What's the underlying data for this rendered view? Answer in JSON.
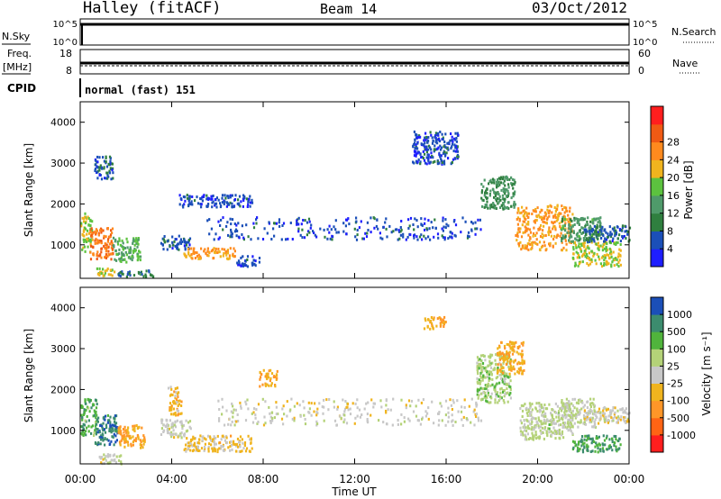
{
  "header": {
    "station": "Halley (fitACF)",
    "beam": "Beam 14",
    "date": "03/Oct/2012"
  },
  "top_panels": {
    "nsky_label": "N.Sky",
    "nsky_ticks": [
      "10^5",
      "10^0"
    ],
    "nsearch_label": "N.Search",
    "nsearch_ticks": [
      "10^5",
      "10^0"
    ],
    "freq_label": "Freq.",
    "freq_unit": "[MHz]",
    "freq_ticks": [
      "18",
      "8"
    ],
    "nave_label": "Nave",
    "nave_ticks": [
      "60",
      "0"
    ],
    "cpid_label": "CPID",
    "cpid_value": "normal (fast) 151"
  },
  "x_axis": {
    "title": "Time UT",
    "ticks": [
      "00:00",
      "04:00",
      "08:00",
      "12:00",
      "16:00",
      "20:00",
      "00:00"
    ]
  },
  "colors": {
    "power": [
      "#1e1eff",
      "#1b4fb8",
      "#2f7f3f",
      "#4f9a6a",
      "#5cc23f",
      "#f0b41e",
      "#ff8a1e",
      "#f05a14",
      "#ff1e1e"
    ],
    "velocity": [
      "#ff1e1e",
      "#ff6414",
      "#ff9628",
      "#f0b41e",
      "#c8c8c8",
      "#b4d278",
      "#50b43c",
      "#3c8c6e",
      "#1b4fb8"
    ]
  },
  "chart_data": [
    {
      "type": "heatmap",
      "name": "power",
      "xlabel": "",
      "ylabel": "Slant Range [km]",
      "xlim": [
        0,
        24
      ],
      "ylim": [
        180,
        4500
      ],
      "yticks": [
        "1000",
        "2000",
        "3000",
        "4000"
      ],
      "colorbar": {
        "label": "Power [dB]",
        "ticks": [
          "4",
          "8",
          "12",
          "16",
          "20",
          "24",
          "28"
        ],
        "range": [
          0,
          32
        ]
      },
      "regions": [
        {
          "t0": 0.0,
          "t1": 0.5,
          "r0": 850,
          "r1": 1800,
          "v": 17
        },
        {
          "t0": 0.4,
          "t1": 1.4,
          "r0": 650,
          "r1": 1450,
          "v": 25
        },
        {
          "t0": 1.4,
          "t1": 2.6,
          "r0": 600,
          "r1": 1200,
          "v": 14
        },
        {
          "t0": 0.7,
          "t1": 1.6,
          "r0": 250,
          "r1": 450,
          "v": 18
        },
        {
          "t0": 1.6,
          "t1": 3.2,
          "r0": 250,
          "r1": 400,
          "v": 8
        },
        {
          "t0": 3.5,
          "t1": 4.8,
          "r0": 900,
          "r1": 1250,
          "v": 6
        },
        {
          "t0": 4.5,
          "t1": 6.8,
          "r0": 680,
          "r1": 950,
          "v": 22
        },
        {
          "t0": 6.8,
          "t1": 7.8,
          "r0": 500,
          "r1": 750,
          "v": 5
        },
        {
          "t0": 4.3,
          "t1": 7.5,
          "r0": 1950,
          "r1": 2250,
          "v": 5
        },
        {
          "t0": 5.5,
          "t1": 17.5,
          "r0": 1150,
          "r1": 1700,
          "v": 5
        },
        {
          "t0": 17.5,
          "t1": 19.0,
          "r0": 1900,
          "r1": 2700,
          "v": 11
        },
        {
          "t0": 19.0,
          "t1": 21.5,
          "r0": 900,
          "r1": 2000,
          "v": 22
        },
        {
          "t0": 21.5,
          "t1": 23.6,
          "r0": 500,
          "r1": 1100,
          "v": 18
        },
        {
          "t0": 21.0,
          "t1": 22.8,
          "r0": 1100,
          "r1": 1700,
          "v": 12
        },
        {
          "t0": 22.0,
          "t1": 24.0,
          "r0": 1100,
          "r1": 1500,
          "v": 6
        },
        {
          "t0": 0.6,
          "t1": 1.4,
          "r0": 2600,
          "r1": 3200,
          "v": 6
        },
        {
          "t0": 14.5,
          "t1": 16.5,
          "r0": 3000,
          "r1": 3800,
          "v": 5
        }
      ]
    },
    {
      "type": "heatmap",
      "name": "velocity",
      "xlabel": "Time UT",
      "ylabel": "Slant Range [km]",
      "xlim": [
        0,
        24
      ],
      "ylim": [
        180,
        4500
      ],
      "yticks": [
        "1000",
        "2000",
        "3000",
        "4000"
      ],
      "colorbar": {
        "label": "Velocity [m s⁻¹]",
        "ticks": [
          "-1000",
          "-500",
          "-100",
          "-25",
          "25",
          "100",
          "500",
          "1000"
        ],
        "range": [
          -1250,
          1250
        ]
      },
      "regions": [
        {
          "t0": 0.0,
          "t1": 0.7,
          "r0": 900,
          "r1": 1800,
          "v": 600
        },
        {
          "t0": 0.6,
          "t1": 1.6,
          "r0": 650,
          "r1": 1400,
          "v": 900
        },
        {
          "t0": 1.6,
          "t1": 2.8,
          "r0": 600,
          "r1": 1150,
          "v": -400
        },
        {
          "t0": 0.8,
          "t1": 1.8,
          "r0": 200,
          "r1": 450,
          "v": 80
        },
        {
          "t0": 3.5,
          "t1": 4.8,
          "r0": 850,
          "r1": 1300,
          "v": 60
        },
        {
          "t0": 4.5,
          "t1": 7.5,
          "r0": 500,
          "r1": 900,
          "v": -200
        },
        {
          "t0": 3.8,
          "t1": 4.4,
          "r0": 1400,
          "r1": 2100,
          "v": -300
        },
        {
          "t0": 6.0,
          "t1": 17.5,
          "r0": 1150,
          "r1": 1800,
          "v": 0
        },
        {
          "t0": 7.8,
          "t1": 8.6,
          "r0": 2100,
          "r1": 2500,
          "v": -400
        },
        {
          "t0": 17.3,
          "t1": 18.8,
          "r0": 1700,
          "r1": 2900,
          "v": 300
        },
        {
          "t0": 18.2,
          "t1": 19.4,
          "r0": 2400,
          "r1": 3200,
          "v": -400
        },
        {
          "t0": 19.2,
          "t1": 21.5,
          "r0": 800,
          "r1": 1700,
          "v": 200
        },
        {
          "t0": 21.5,
          "t1": 23.6,
          "r0": 500,
          "r1": 900,
          "v": 700
        },
        {
          "t0": 21.0,
          "t1": 22.5,
          "r0": 1100,
          "r1": 1800,
          "v": 150
        },
        {
          "t0": 22.0,
          "t1": 24.0,
          "r0": 1200,
          "r1": 1600,
          "v": 0
        },
        {
          "t0": 15.0,
          "t1": 16.0,
          "r0": 3500,
          "r1": 3800,
          "v": -400
        }
      ]
    }
  ]
}
